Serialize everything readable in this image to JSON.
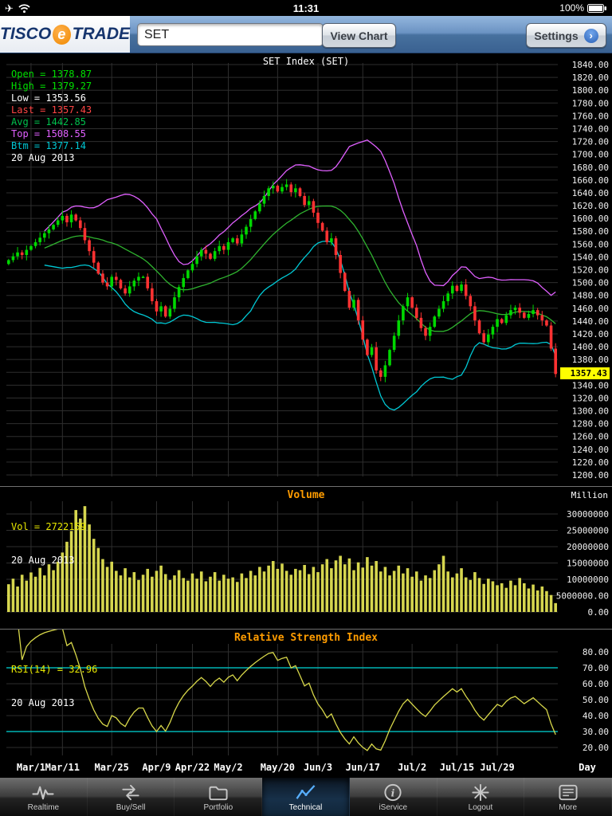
{
  "status_bar": {
    "time": "11:31",
    "battery_percent": "100%"
  },
  "header": {
    "logo_tisco": "TISCO",
    "logo_e": "e",
    "logo_trade": "TRADE",
    "symbol_value": "SET",
    "view_chart_label": "View Chart",
    "settings_label": "Settings"
  },
  "main_chart": {
    "title": "SET Index (SET)",
    "legend": [
      {
        "label": "Open = 1378.87",
        "color": "#00e000"
      },
      {
        "label": "High = 1379.27",
        "color": "#00e000"
      },
      {
        "label": "Low = 1353.56",
        "color": "#ffffff"
      },
      {
        "label": "Last = 1357.43",
        "color": "#ff4545"
      },
      {
        "label": "Avg = 1442.85",
        "color": "#00c24d"
      },
      {
        "label": "Top = 1508.55",
        "color": "#e060ff"
      },
      {
        "label": "Btm = 1377.14",
        "color": "#00c8d4"
      }
    ],
    "date": "20 Aug 2013",
    "last_price_tag": "1357.43"
  },
  "volume_panel": {
    "title": "Volume",
    "vol_text": "Vol = 2722159",
    "date": "20 Aug 2013",
    "unit_label": "Million",
    "y_labels": [
      "30000000",
      "25000000",
      "20000000",
      "15000000",
      "10000000",
      "5000000.00",
      "0.00"
    ]
  },
  "rsi_panel": {
    "title": "Relative Strength Index",
    "rsi_text": "RSI(14) = 32.96",
    "date": "20 Aug 2013"
  },
  "x_axis": {
    "labels": [
      "Mar/1",
      "Mar/11",
      "Mar/25",
      "Apr/9",
      "Apr/22",
      "May/2",
      "May/20",
      "Jun/3",
      "Jun/17",
      "Jul/2",
      "Jul/15",
      "Jul/29"
    ],
    "tick_indices": [
      5,
      12,
      23,
      33,
      41,
      49,
      60,
      69,
      79,
      90,
      100,
      109
    ],
    "day_label": "Day"
  },
  "tab_bar": {
    "selected_index": 3,
    "items": [
      {
        "label": "Realtime",
        "icon": "waveform-icon"
      },
      {
        "label": "Buy/Sell",
        "icon": "buysell-arrows-icon"
      },
      {
        "label": "Portfolio",
        "icon": "folder-icon"
      },
      {
        "label": "Technical",
        "icon": "line-chart-icon"
      },
      {
        "label": "iService",
        "icon": "info-icon"
      },
      {
        "label": "Logout",
        "icon": "starburst-icon"
      },
      {
        "label": "More",
        "icon": "list-icon"
      }
    ]
  },
  "chart_data": {
    "type": "candlestick",
    "symbol": "SET",
    "title": "SET Index (SET)",
    "price_axis": {
      "min": 1200,
      "max": 1840,
      "step": 20
    },
    "closes": [
      1535,
      1541,
      1547,
      1543,
      1551,
      1557,
      1563,
      1570,
      1577,
      1583,
      1590,
      1597,
      1604,
      1594,
      1606,
      1597,
      1585,
      1566,
      1549,
      1531,
      1514,
      1500,
      1494,
      1509,
      1504,
      1491,
      1483,
      1494,
      1503,
      1509,
      1509,
      1491,
      1471,
      1455,
      1463,
      1447,
      1459,
      1477,
      1493,
      1507,
      1519,
      1529,
      1541,
      1551,
      1545,
      1537,
      1549,
      1557,
      1551,
      1563,
      1569,
      1561,
      1575,
      1587,
      1599,
      1611,
      1623,
      1635,
      1647,
      1651,
      1642,
      1649,
      1653,
      1641,
      1647,
      1635,
      1621,
      1627,
      1609,
      1593,
      1581,
      1563,
      1569,
      1543,
      1515,
      1487,
      1461,
      1473,
      1441,
      1411,
      1387,
      1399,
      1363,
      1353,
      1371,
      1395,
      1417,
      1441,
      1463,
      1477,
      1461,
      1445,
      1429,
      1417,
      1431,
      1447,
      1459,
      1471,
      1483,
      1495,
      1487,
      1497,
      1479,
      1463,
      1441,
      1421,
      1407,
      1419,
      1431,
      1443,
      1437,
      1449,
      1457,
      1461,
      1453,
      1445,
      1451,
      1457,
      1449,
      1441,
      1433,
      1397,
      1357.43
    ],
    "volumes_millions": [
      8.5,
      10.2,
      7.8,
      11.4,
      9.6,
      12.1,
      10.8,
      13.5,
      11.2,
      14.6,
      12.8,
      15.4,
      18.2,
      21.5,
      24.8,
      31.2,
      28.6,
      32.4,
      26.8,
      22.4,
      19.6,
      16.2,
      13.8,
      15.4,
      12.6,
      11.2,
      13.4,
      10.6,
      12.2,
      9.8,
      11.4,
      13.2,
      10.8,
      12.6,
      14.2,
      11.6,
      9.8,
      11.2,
      12.8,
      10.4,
      9.6,
      11.8,
      10.2,
      12.4,
      9.4,
      10.8,
      12.2,
      9.6,
      11.4,
      10.2,
      10.6,
      9.2,
      11.8,
      10.4,
      12.6,
      11.2,
      13.8,
      12.4,
      14.2,
      15.6,
      13.2,
      14.8,
      12.6,
      11.4,
      13.2,
      12.8,
      14.4,
      11.6,
      13.8,
      12.2,
      14.6,
      16.2,
      13.4,
      15.8,
      17.2,
      14.6,
      16.4,
      12.8,
      15.2,
      13.6,
      16.8,
      14.2,
      15.6,
      12.4,
      13.8,
      11.2,
      12.6,
      14.2,
      11.8,
      13.4,
      10.8,
      12.4,
      9.6,
      11.2,
      10.4,
      12.8,
      14.6,
      17.2,
      12.4,
      10.6,
      11.8,
      13.4,
      10.6,
      9.8,
      12.2,
      10.4,
      8.6,
      10.2,
      9.4,
      8.2,
      8.8,
      7.4,
      9.6,
      8.2,
      10.4,
      8.8,
      7.2,
      8.4,
      6.6,
      7.8,
      6.4,
      5.2,
      2.72
    ],
    "volume_axis": {
      "min": 0,
      "max_gridline": 30,
      "step": 5
    },
    "rsi_axis": {
      "min": 20,
      "max": 80,
      "step": 10
    },
    "rsi_period": 14,
    "overbought": 70,
    "oversold": 30,
    "band": {
      "period": 20,
      "mult": 2
    }
  },
  "colors": {
    "up": "#00d800",
    "down": "#ff3232",
    "band_top": "#e060ff",
    "band_mid": "#2fb32f",
    "band_btm": "#00c8d4",
    "volume_bar": "#d6d64f",
    "rsi_line": "#d8d84a",
    "ob_os_line": "#00b4b4",
    "grid": "#2e2e2e",
    "axis_text": "#f0f0f0",
    "legend_yellow": "#e8e800",
    "tag_bg": "#ffff00",
    "tab_icon": "#c6c6c6",
    "tab_icon_selected": "#57aefc"
  }
}
